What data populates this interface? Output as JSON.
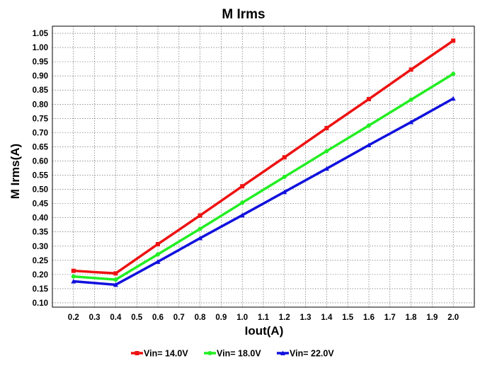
{
  "chart_data": {
    "type": "line",
    "title": "M Irms",
    "xlabel": "Iout(A)",
    "ylabel": "M Irms(A)",
    "x": [
      0.2,
      0.4,
      0.6,
      0.8,
      1.0,
      1.2,
      1.4,
      1.6,
      1.8,
      2.0
    ],
    "xlim": [
      0.1,
      2.1
    ],
    "ylim": [
      0.085,
      1.075
    ],
    "xticks": [
      "0.2",
      "0.3",
      "0.4",
      "0.5",
      "0.6",
      "0.7",
      "0.8",
      "0.9",
      "1.0",
      "1.1",
      "1.2",
      "1.3",
      "1.4",
      "1.5",
      "1.6",
      "1.7",
      "1.8",
      "1.9",
      "2.0"
    ],
    "yticks": [
      "0.10",
      "0.15",
      "0.20",
      "0.25",
      "0.30",
      "0.35",
      "0.40",
      "0.45",
      "0.50",
      "0.55",
      "0.60",
      "0.65",
      "0.70",
      "0.75",
      "0.80",
      "0.85",
      "0.90",
      "0.95",
      "1.00",
      "1.05"
    ],
    "grid": true,
    "legend_position": "bottom",
    "series": [
      {
        "name": "Vin= 14.0V",
        "color": "#ee1111",
        "marker": "square",
        "values": [
          0.213,
          0.204,
          0.307,
          0.408,
          0.511,
          0.613,
          0.716,
          0.818,
          0.922,
          1.024
        ]
      },
      {
        "name": "Vin= 18.0V",
        "color": "#22ee22",
        "marker": "circle",
        "values": [
          0.193,
          0.182,
          0.271,
          0.361,
          0.453,
          0.544,
          0.635,
          0.725,
          0.816,
          0.907
        ]
      },
      {
        "name": "Vin= 22.0V",
        "color": "#1111dd",
        "marker": "triangle",
        "values": [
          0.176,
          0.164,
          0.245,
          0.328,
          0.409,
          0.491,
          0.573,
          0.656,
          0.737,
          0.82
        ]
      }
    ]
  }
}
